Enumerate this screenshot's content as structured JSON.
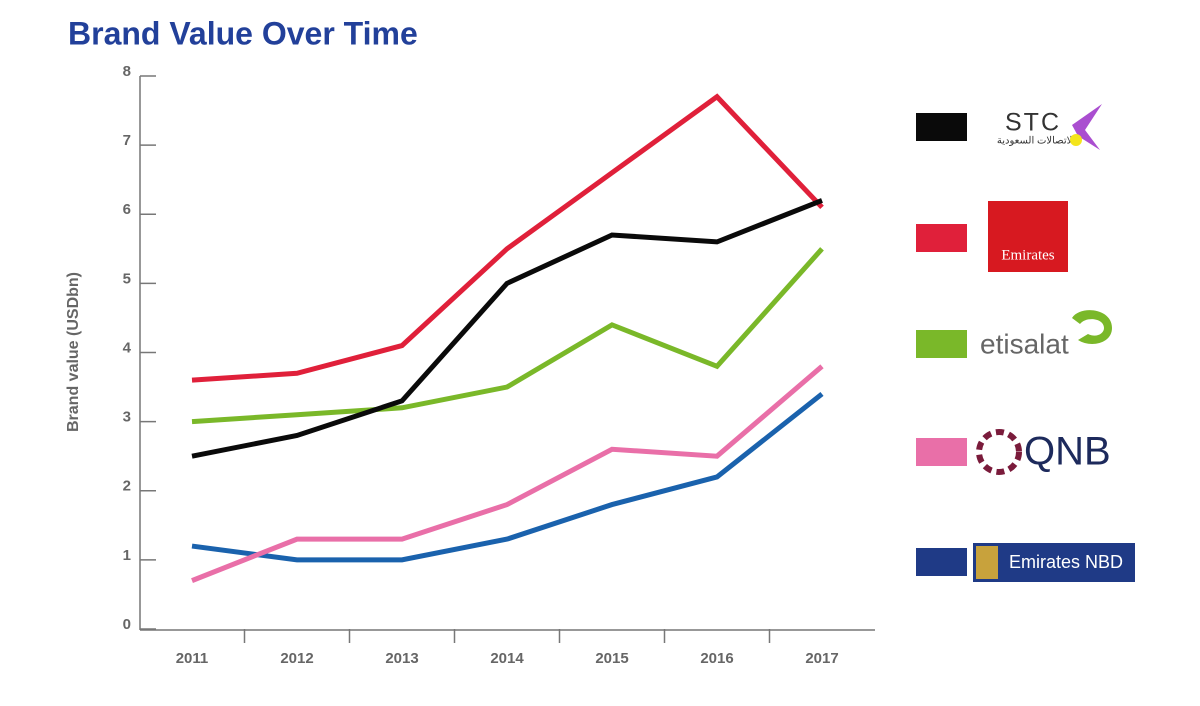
{
  "chart_data": {
    "type": "line",
    "title": "Brand Value Over Time",
    "y_label": "Brand value (USDbn)",
    "categories": [
      "2011",
      "2012",
      "2013",
      "2014",
      "2015",
      "2016",
      "2017"
    ],
    "ylim": [
      0,
      8
    ],
    "yticks": [
      0,
      1,
      2,
      3,
      4,
      5,
      6,
      7,
      8
    ],
    "grid": false,
    "legend": "right",
    "series": [
      {
        "name": "STC",
        "subtitle": "الاتصالات السعودية",
        "color": "#0a0a0a",
        "values": [
          2.5,
          2.8,
          3.3,
          5.0,
          5.7,
          5.6,
          6.2
        ]
      },
      {
        "name": "Emirates",
        "color": "#e0203a",
        "values": [
          3.6,
          3.7,
          4.1,
          5.5,
          6.6,
          7.7,
          6.1
        ]
      },
      {
        "name": "etisalat",
        "color": "#7ab829",
        "values": [
          3.0,
          3.1,
          3.2,
          3.5,
          4.4,
          3.8,
          5.5
        ]
      },
      {
        "name": "QNB",
        "color": "#e96fa8",
        "values": [
          0.7,
          1.3,
          1.3,
          1.8,
          2.6,
          2.5,
          3.8
        ]
      },
      {
        "name": "Emirates NBD",
        "color": "#1a62ad",
        "values": [
          1.2,
          1.0,
          1.0,
          1.3,
          1.8,
          2.2,
          3.4
        ]
      }
    ]
  }
}
